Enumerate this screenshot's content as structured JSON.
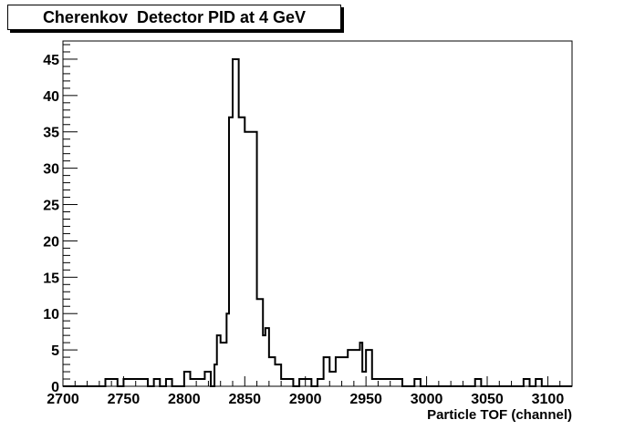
{
  "chart_data": {
    "type": "histogram",
    "title": "Cherenkov  Detector PID at 4 GeV",
    "xlabel": "Particle TOF (channel)",
    "ylabel": "",
    "xlim": [
      2700,
      3120
    ],
    "ylim": [
      0,
      47.5
    ],
    "bin_width": 5,
    "xticks": [
      2700,
      2750,
      2800,
      2850,
      2900,
      2950,
      3000,
      3050,
      3100
    ],
    "yticks": [
      0,
      5,
      10,
      15,
      20,
      25,
      30,
      35,
      40,
      45
    ],
    "grid": false,
    "line_color": "#000000",
    "bins": [
      {
        "x": 2735,
        "y": 1
      },
      {
        "x": 2740,
        "y": 1
      },
      {
        "x": 2750,
        "y": 1
      },
      {
        "x": 2755,
        "y": 1
      },
      {
        "x": 2760,
        "y": 1
      },
      {
        "x": 2765,
        "y": 1
      },
      {
        "x": 2775,
        "y": 1
      },
      {
        "x": 2785,
        "y": 1
      },
      {
        "x": 2800,
        "y": 2
      },
      {
        "x": 2805,
        "y": 1
      },
      {
        "x": 2810,
        "y": 1
      },
      {
        "x": 2815,
        "y": 1
      },
      {
        "x": 2817,
        "y": 2
      },
      {
        "x": 2825,
        "y": 3
      },
      {
        "x": 2827,
        "y": 7
      },
      {
        "x": 2830,
        "y": 6
      },
      {
        "x": 2835,
        "y": 10
      },
      {
        "x": 2837,
        "y": 37
      },
      {
        "x": 2840,
        "y": 45
      },
      {
        "x": 2845,
        "y": 37
      },
      {
        "x": 2850,
        "y": 35
      },
      {
        "x": 2855,
        "y": 35
      },
      {
        "x": 2860,
        "y": 12
      },
      {
        "x": 2865,
        "y": 7
      },
      {
        "x": 2867,
        "y": 8
      },
      {
        "x": 2870,
        "y": 4
      },
      {
        "x": 2875,
        "y": 3
      },
      {
        "x": 2880,
        "y": 1
      },
      {
        "x": 2885,
        "y": 1
      },
      {
        "x": 2895,
        "y": 1
      },
      {
        "x": 2900,
        "y": 1
      },
      {
        "x": 2910,
        "y": 1
      },
      {
        "x": 2915,
        "y": 4
      },
      {
        "x": 2920,
        "y": 2
      },
      {
        "x": 2925,
        "y": 4
      },
      {
        "x": 2930,
        "y": 4
      },
      {
        "x": 2935,
        "y": 5
      },
      {
        "x": 2940,
        "y": 5
      },
      {
        "x": 2945,
        "y": 6
      },
      {
        "x": 2947,
        "y": 2
      },
      {
        "x": 2950,
        "y": 5
      },
      {
        "x": 2955,
        "y": 1
      },
      {
        "x": 2960,
        "y": 1
      },
      {
        "x": 2965,
        "y": 1
      },
      {
        "x": 2970,
        "y": 1
      },
      {
        "x": 2975,
        "y": 1
      },
      {
        "x": 2990,
        "y": 1
      },
      {
        "x": 3040,
        "y": 1
      },
      {
        "x": 3080,
        "y": 1
      },
      {
        "x": 3090,
        "y": 1
      }
    ]
  }
}
